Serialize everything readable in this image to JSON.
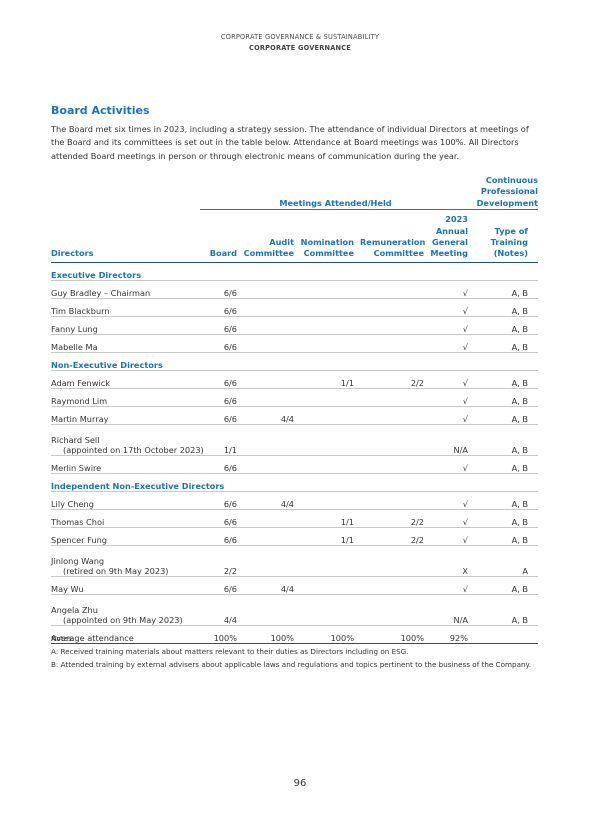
{
  "header": {
    "section": "CORPORATE GOVERNANCE & SUSTAINABILITY",
    "page": "CORPORATE GOVERNANCE"
  },
  "title": "Board Activities",
  "intro": "The Board met six times in 2023, including a strategy session. The attendance of individual Directors at meetings of the Board and its committees is set out in the table below. Attendance at Board meetings was 100%. All Directors attended Board meetings in person or through electronic means of communication during the year.",
  "table": {
    "group_headers": {
      "meetings": "Meetings Attended/Held",
      "development": [
        "Continuous",
        "Professional",
        "Development"
      ]
    },
    "columns": [
      [
        "Directors"
      ],
      [
        "Board"
      ],
      [
        "Audit",
        "Committee"
      ],
      [
        "Nomination",
        "Committee"
      ],
      [
        "Remuneration",
        "Committee"
      ],
      [
        "2023",
        "Annual",
        "General",
        "Meeting"
      ],
      [
        "Type of",
        "Training",
        "(Notes)"
      ]
    ],
    "sections": [
      {
        "title": "Executive Directors",
        "rows": [
          {
            "name": "Guy Bradley – Chairman",
            "cells": [
              "6/6",
              null,
              null,
              null,
              "√",
              "A, B"
            ]
          },
          {
            "name": "Tim Blackburn",
            "cells": [
              "6/6",
              null,
              null,
              null,
              "√",
              "A, B"
            ]
          },
          {
            "name": "Fanny Lung",
            "cells": [
              "6/6",
              null,
              null,
              null,
              "√",
              "A, B"
            ]
          },
          {
            "name": "Mabelle Ma",
            "cells": [
              "6/6",
              null,
              null,
              null,
              "√",
              "A, B"
            ]
          }
        ]
      },
      {
        "title": "Non-Executive Directors",
        "rows": [
          {
            "name": "Adam Fenwick",
            "cells": [
              "6/6",
              null,
              "1/1",
              "2/2",
              "√",
              "A, B"
            ]
          },
          {
            "name": "Raymond Lim",
            "cells": [
              "6/6",
              null,
              null,
              null,
              "√",
              "A, B"
            ]
          },
          {
            "name": "Martin Murray",
            "cells": [
              "6/6",
              "4/4",
              null,
              null,
              "√",
              "A, B"
            ]
          },
          {
            "name": "Richard Sell",
            "note": "(appointed on 17th October 2023)",
            "cells": [
              "1/1",
              null,
              null,
              null,
              "N/A",
              "A, B"
            ]
          },
          {
            "name": "Merlin Swire",
            "cells": [
              "6/6",
              null,
              null,
              null,
              "√",
              "A, B"
            ]
          }
        ]
      },
      {
        "title": "Independent Non-Executive Directors",
        "rows": [
          {
            "name": "Lily Cheng",
            "cells": [
              "6/6",
              "4/4",
              null,
              null,
              "√",
              "A, B"
            ]
          },
          {
            "name": "Thomas Choi",
            "cells": [
              "6/6",
              null,
              "1/1",
              "2/2",
              "√",
              "A, B"
            ]
          },
          {
            "name": "Spencer Fung",
            "cells": [
              "6/6",
              null,
              "1/1",
              "2/2",
              "√",
              "A, B"
            ]
          },
          {
            "name": "Jinlong Wang",
            "note": "(retired on 9th May 2023)",
            "cells": [
              "2/2",
              null,
              null,
              null,
              "X",
              "A"
            ]
          },
          {
            "name": "May Wu",
            "cells": [
              "6/6",
              "4/4",
              null,
              null,
              "√",
              "A, B"
            ]
          },
          {
            "name": "Angela Zhu",
            "note": "(appointed on 9th May 2023)",
            "cells": [
              "4/4",
              null,
              null,
              null,
              "N/A",
              "A, B"
            ]
          }
        ]
      }
    ],
    "summary": {
      "label": "Average attendance",
      "cells": [
        "100%",
        "100%",
        "100%",
        "100%",
        "92%",
        null
      ]
    }
  },
  "notes": {
    "title": "Notes:",
    "items": [
      "A: Received training materials about matters relevant to their duties as Directors including on ESG.",
      "B: Attended training by external advisers about applicable laws and regulations and topics pertinent to the business of the Company."
    ]
  },
  "page_number": "96"
}
